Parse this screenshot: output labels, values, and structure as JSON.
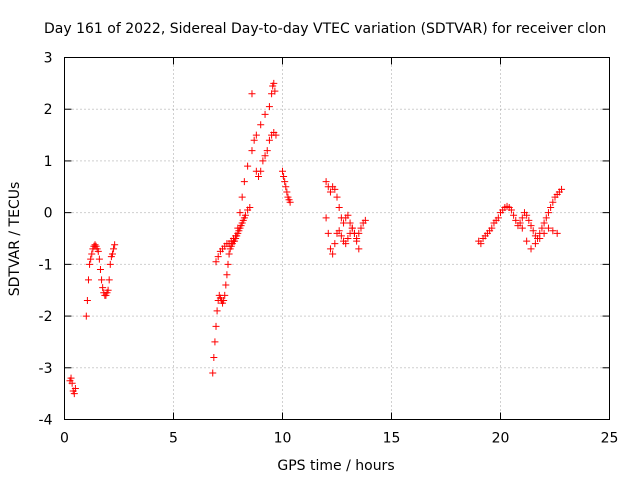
{
  "chart_data": {
    "type": "scatter",
    "title": "Day 161 of 2022, Sidereal Day-to-day VTEC variation (SDTVAR) for receiver clon",
    "xlabel": "GPS time / hours",
    "ylabel": "SDTVAR / TECUs",
    "xlim": [
      0,
      25
    ],
    "ylim": [
      -4,
      3
    ],
    "xticks": [
      0,
      5,
      10,
      15,
      20,
      25
    ],
    "yticks": [
      -4,
      -3,
      -2,
      -1,
      0,
      1,
      2,
      3
    ],
    "grid": true,
    "marker": "+",
    "color": "#ff0000",
    "series": [
      {
        "name": "SDTVAR",
        "x": [
          0.25,
          0.3,
          0.35,
          0.4,
          0.45,
          0.5,
          1.0,
          1.05,
          1.1,
          1.15,
          1.2,
          1.25,
          1.3,
          1.35,
          1.4,
          1.45,
          1.5,
          1.55,
          1.6,
          1.65,
          1.7,
          1.75,
          1.8,
          1.85,
          1.9,
          1.95,
          2.0,
          2.05,
          2.1,
          2.15,
          2.2,
          2.25,
          2.3,
          6.8,
          6.85,
          6.9,
          6.95,
          7.0,
          7.05,
          7.1,
          7.15,
          7.2,
          7.25,
          7.3,
          7.35,
          7.4,
          7.45,
          7.5,
          7.55,
          7.6,
          7.65,
          7.7,
          7.75,
          7.8,
          7.85,
          7.9,
          7.95,
          8.0,
          8.05,
          8.1,
          8.15,
          8.2,
          8.25,
          8.3,
          8.4,
          8.5,
          6.95,
          7.05,
          7.15,
          7.25,
          7.35,
          7.45,
          7.55,
          7.65,
          7.75,
          7.85,
          7.95,
          8.05,
          8.15,
          8.25,
          8.4,
          8.6,
          8.8,
          9.0,
          9.2,
          9.4,
          9.5,
          9.55,
          9.6,
          9.65,
          8.6,
          8.7,
          8.8,
          8.9,
          9.0,
          9.1,
          9.2,
          9.3,
          9.4,
          9.5,
          9.6,
          9.7,
          10.0,
          10.05,
          10.1,
          10.15,
          10.2,
          10.25,
          10.3,
          10.35,
          12.0,
          12.1,
          12.2,
          12.3,
          12.4,
          12.5,
          12.6,
          12.7,
          12.8,
          12.9,
          13.0,
          13.1,
          13.2,
          13.3,
          13.4,
          13.5,
          13.6,
          13.7,
          13.8,
          12.0,
          12.1,
          12.2,
          12.3,
          12.4,
          12.5,
          12.6,
          12.7,
          12.8,
          12.9,
          13.0,
          13.1,
          13.2,
          13.3,
          13.4,
          13.5,
          19.0,
          19.1,
          19.2,
          19.3,
          19.4,
          19.5,
          19.6,
          19.7,
          19.8,
          19.9,
          20.0,
          20.1,
          20.2,
          20.3,
          20.4,
          20.5,
          20.6,
          20.7,
          20.8,
          20.9,
          21.0,
          21.1,
          21.2,
          21.3,
          21.4,
          21.5,
          21.6,
          21.7,
          21.8,
          21.9,
          22.0,
          22.1,
          22.2,
          22.3,
          22.4,
          22.5,
          22.6,
          22.7,
          22.8,
          21.0,
          21.2,
          21.4,
          21.6,
          21.8,
          22.0,
          22.2,
          22.4,
          22.6
        ],
        "y": [
          -3.25,
          -3.2,
          -3.3,
          -3.45,
          -3.5,
          -3.4,
          -2.0,
          -1.7,
          -1.3,
          -1.0,
          -0.9,
          -0.8,
          -0.7,
          -0.65,
          -0.62,
          -0.65,
          -0.7,
          -0.75,
          -0.9,
          -1.1,
          -1.3,
          -1.45,
          -1.55,
          -1.6,
          -1.6,
          -1.55,
          -1.5,
          -1.3,
          -1.0,
          -0.85,
          -0.8,
          -0.7,
          -0.62,
          -3.1,
          -2.8,
          -2.5,
          -2.2,
          -1.9,
          -1.7,
          -1.6,
          -1.65,
          -1.7,
          -1.75,
          -1.7,
          -1.6,
          -1.4,
          -1.2,
          -1.0,
          -0.8,
          -0.7,
          -0.65,
          -0.6,
          -0.55,
          -0.55,
          -0.5,
          -0.45,
          -0.4,
          -0.35,
          -0.3,
          -0.25,
          -0.2,
          -0.15,
          -0.1,
          -0.05,
          0.05,
          0.1,
          -0.95,
          -0.85,
          -0.75,
          -0.7,
          -0.65,
          -0.6,
          -0.6,
          -0.55,
          -0.5,
          -0.45,
          -0.3,
          0.0,
          0.3,
          0.6,
          0.9,
          1.2,
          1.5,
          1.7,
          1.9,
          2.05,
          2.3,
          2.45,
          2.5,
          2.35,
          2.3,
          1.4,
          0.8,
          0.7,
          0.8,
          1.0,
          1.1,
          1.2,
          1.4,
          1.5,
          1.55,
          1.5,
          0.8,
          0.7,
          0.6,
          0.5,
          0.4,
          0.3,
          0.25,
          0.2,
          0.6,
          0.5,
          0.4,
          0.5,
          0.45,
          0.3,
          0.1,
          -0.1,
          -0.2,
          -0.1,
          -0.05,
          -0.2,
          -0.3,
          -0.4,
          -0.5,
          -0.4,
          -0.3,
          -0.2,
          -0.15,
          -0.1,
          -0.4,
          -0.7,
          -0.8,
          -0.6,
          -0.4,
          -0.35,
          -0.45,
          -0.55,
          -0.6,
          -0.5,
          -0.4,
          -0.3,
          -0.4,
          -0.55,
          -0.7,
          -0.55,
          -0.6,
          -0.5,
          -0.45,
          -0.4,
          -0.35,
          -0.3,
          -0.2,
          -0.15,
          -0.1,
          0.0,
          0.05,
          0.1,
          0.12,
          0.1,
          0.05,
          -0.05,
          -0.15,
          -0.25,
          -0.2,
          -0.1,
          0.0,
          -0.05,
          -0.15,
          -0.25,
          -0.35,
          -0.45,
          -0.5,
          -0.4,
          -0.3,
          -0.2,
          -0.1,
          0.0,
          0.1,
          0.2,
          0.3,
          0.35,
          0.4,
          0.45,
          -0.3,
          -0.55,
          -0.7,
          -0.6,
          -0.5,
          -0.4,
          -0.3,
          -0.35,
          -0.4
        ]
      }
    ]
  }
}
